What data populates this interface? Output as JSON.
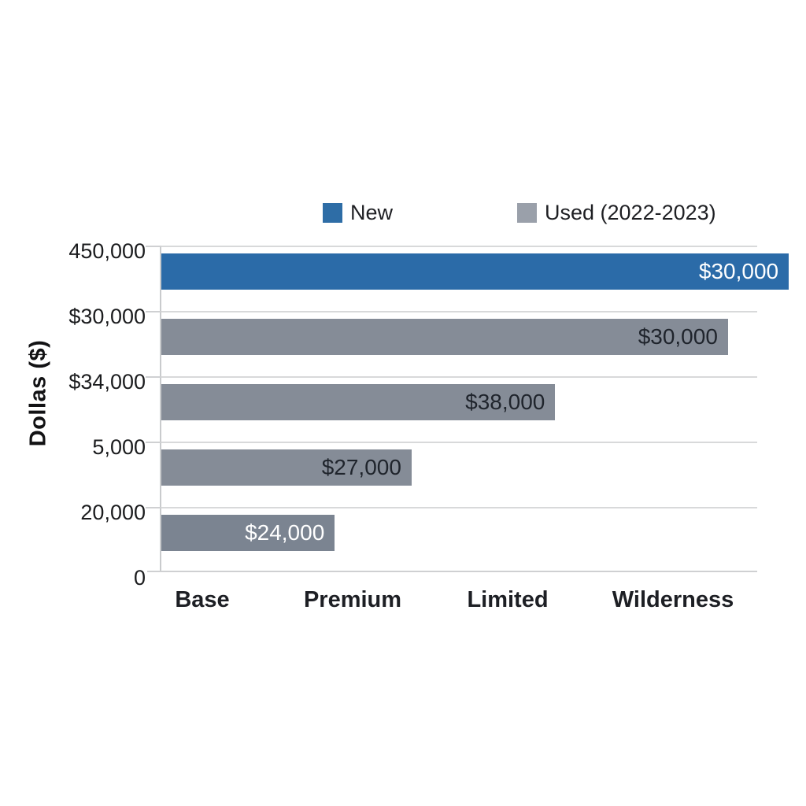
{
  "chart_data": {
    "type": "bar",
    "orientation": "horizontal",
    "title": "",
    "axis_title": "Dollas ($)",
    "legend": [
      {
        "label": "New",
        "color": "#2e6da6"
      },
      {
        "label": "Used (2022-2023)",
        "color": "#9aa0aa"
      }
    ],
    "y_tick_labels": [
      "450,000",
      "$30,000",
      "$34,000",
      "5,000",
      "20,000",
      "0"
    ],
    "categories": [
      "Base",
      "Premium",
      "Limited",
      "Wilderness"
    ],
    "bars": [
      {
        "series": "New",
        "value": 30000,
        "value_label": "$30,000",
        "color": "#2b6ba8",
        "label_color": "#ffffff",
        "width_pct": 105.3
      },
      {
        "series": "Used (2022-2023)",
        "value": 30000,
        "value_label": "$30,000",
        "color": "#858c97",
        "label_color": "#1f242c",
        "width_pct": 95.1
      },
      {
        "series": "Used (2022-2023)",
        "value": 38000,
        "value_label": "$38,000",
        "color": "#858c97",
        "label_color": "#1f242c",
        "width_pct": 66.1
      },
      {
        "series": "Used (2022-2023)",
        "value": 27000,
        "value_label": "$27,000",
        "color": "#858c97",
        "label_color": "#1f242c",
        "width_pct": 42.0
      },
      {
        "series": "Used (2022-2023)",
        "value": 24000,
        "value_label": "$24,000",
        "color": "#7b8491",
        "label_color": "#ffffff",
        "width_pct": 29.1
      }
    ],
    "layout_hints": {
      "grid": "horizontal gridlines on",
      "legend_position": "top",
      "background": "#ffffff",
      "grid_color": "#d8d9da",
      "axis_color": "#c9cbcd"
    }
  }
}
